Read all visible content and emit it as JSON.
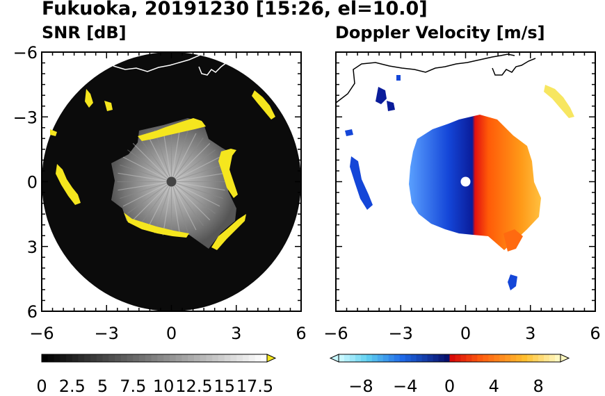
{
  "title": "Fukuoka, 20191230 [15:26, el=10.0]",
  "chart_data": [
    {
      "type": "heatmap",
      "title": "SNR [dB]",
      "xlim": [
        -6,
        6
      ],
      "ylim": [
        -6,
        6
      ],
      "x_ticks": [
        -6,
        -3,
        0,
        3,
        6
      ],
      "y_ticks": [
        -6,
        -3,
        0,
        3,
        6
      ],
      "x_tick_labels": [
        "−6",
        "−3",
        "0",
        "3",
        "6"
      ],
      "y_tick_labels": [
        "6",
        "3",
        "0",
        "−3",
        "−6"
      ],
      "range_radius": 6,
      "colorbar": {
        "ticks": [
          0,
          2.5,
          5,
          7.5,
          10,
          12.5,
          15,
          17.5
        ],
        "tick_labels": [
          "0",
          "2.5",
          "5",
          "7.5",
          "10",
          "12.5",
          "15",
          "17.5"
        ],
        "min": 0,
        "max": 18.5,
        "extend": "max",
        "extend_color": "#f5e61e"
      },
      "colors": {
        "background": "#0a0a0a",
        "echo": "#9a9a9a",
        "high": "#f5e61e",
        "coast": "#ffffff"
      }
    },
    {
      "type": "heatmap",
      "title": "Doppler Velocity [m/s]",
      "xlim": [
        -6,
        6
      ],
      "ylim": [
        -6,
        6
      ],
      "x_ticks": [
        -6,
        -3,
        0,
        3,
        6
      ],
      "y_ticks": [
        -6,
        -3,
        0,
        3,
        6
      ],
      "x_tick_labels": [
        "−6",
        "−3",
        "0",
        "3",
        "6"
      ],
      "colorbar": {
        "ticks": [
          -8,
          -4,
          0,
          4,
          8
        ],
        "tick_labels": [
          "−8",
          "−4",
          "0",
          "4",
          "8"
        ],
        "min": -10,
        "max": 10,
        "extend": "both"
      },
      "colors": {
        "towards": "#1a2fc0",
        "away": "#ff6a10",
        "coast": "#000000"
      }
    }
  ]
}
